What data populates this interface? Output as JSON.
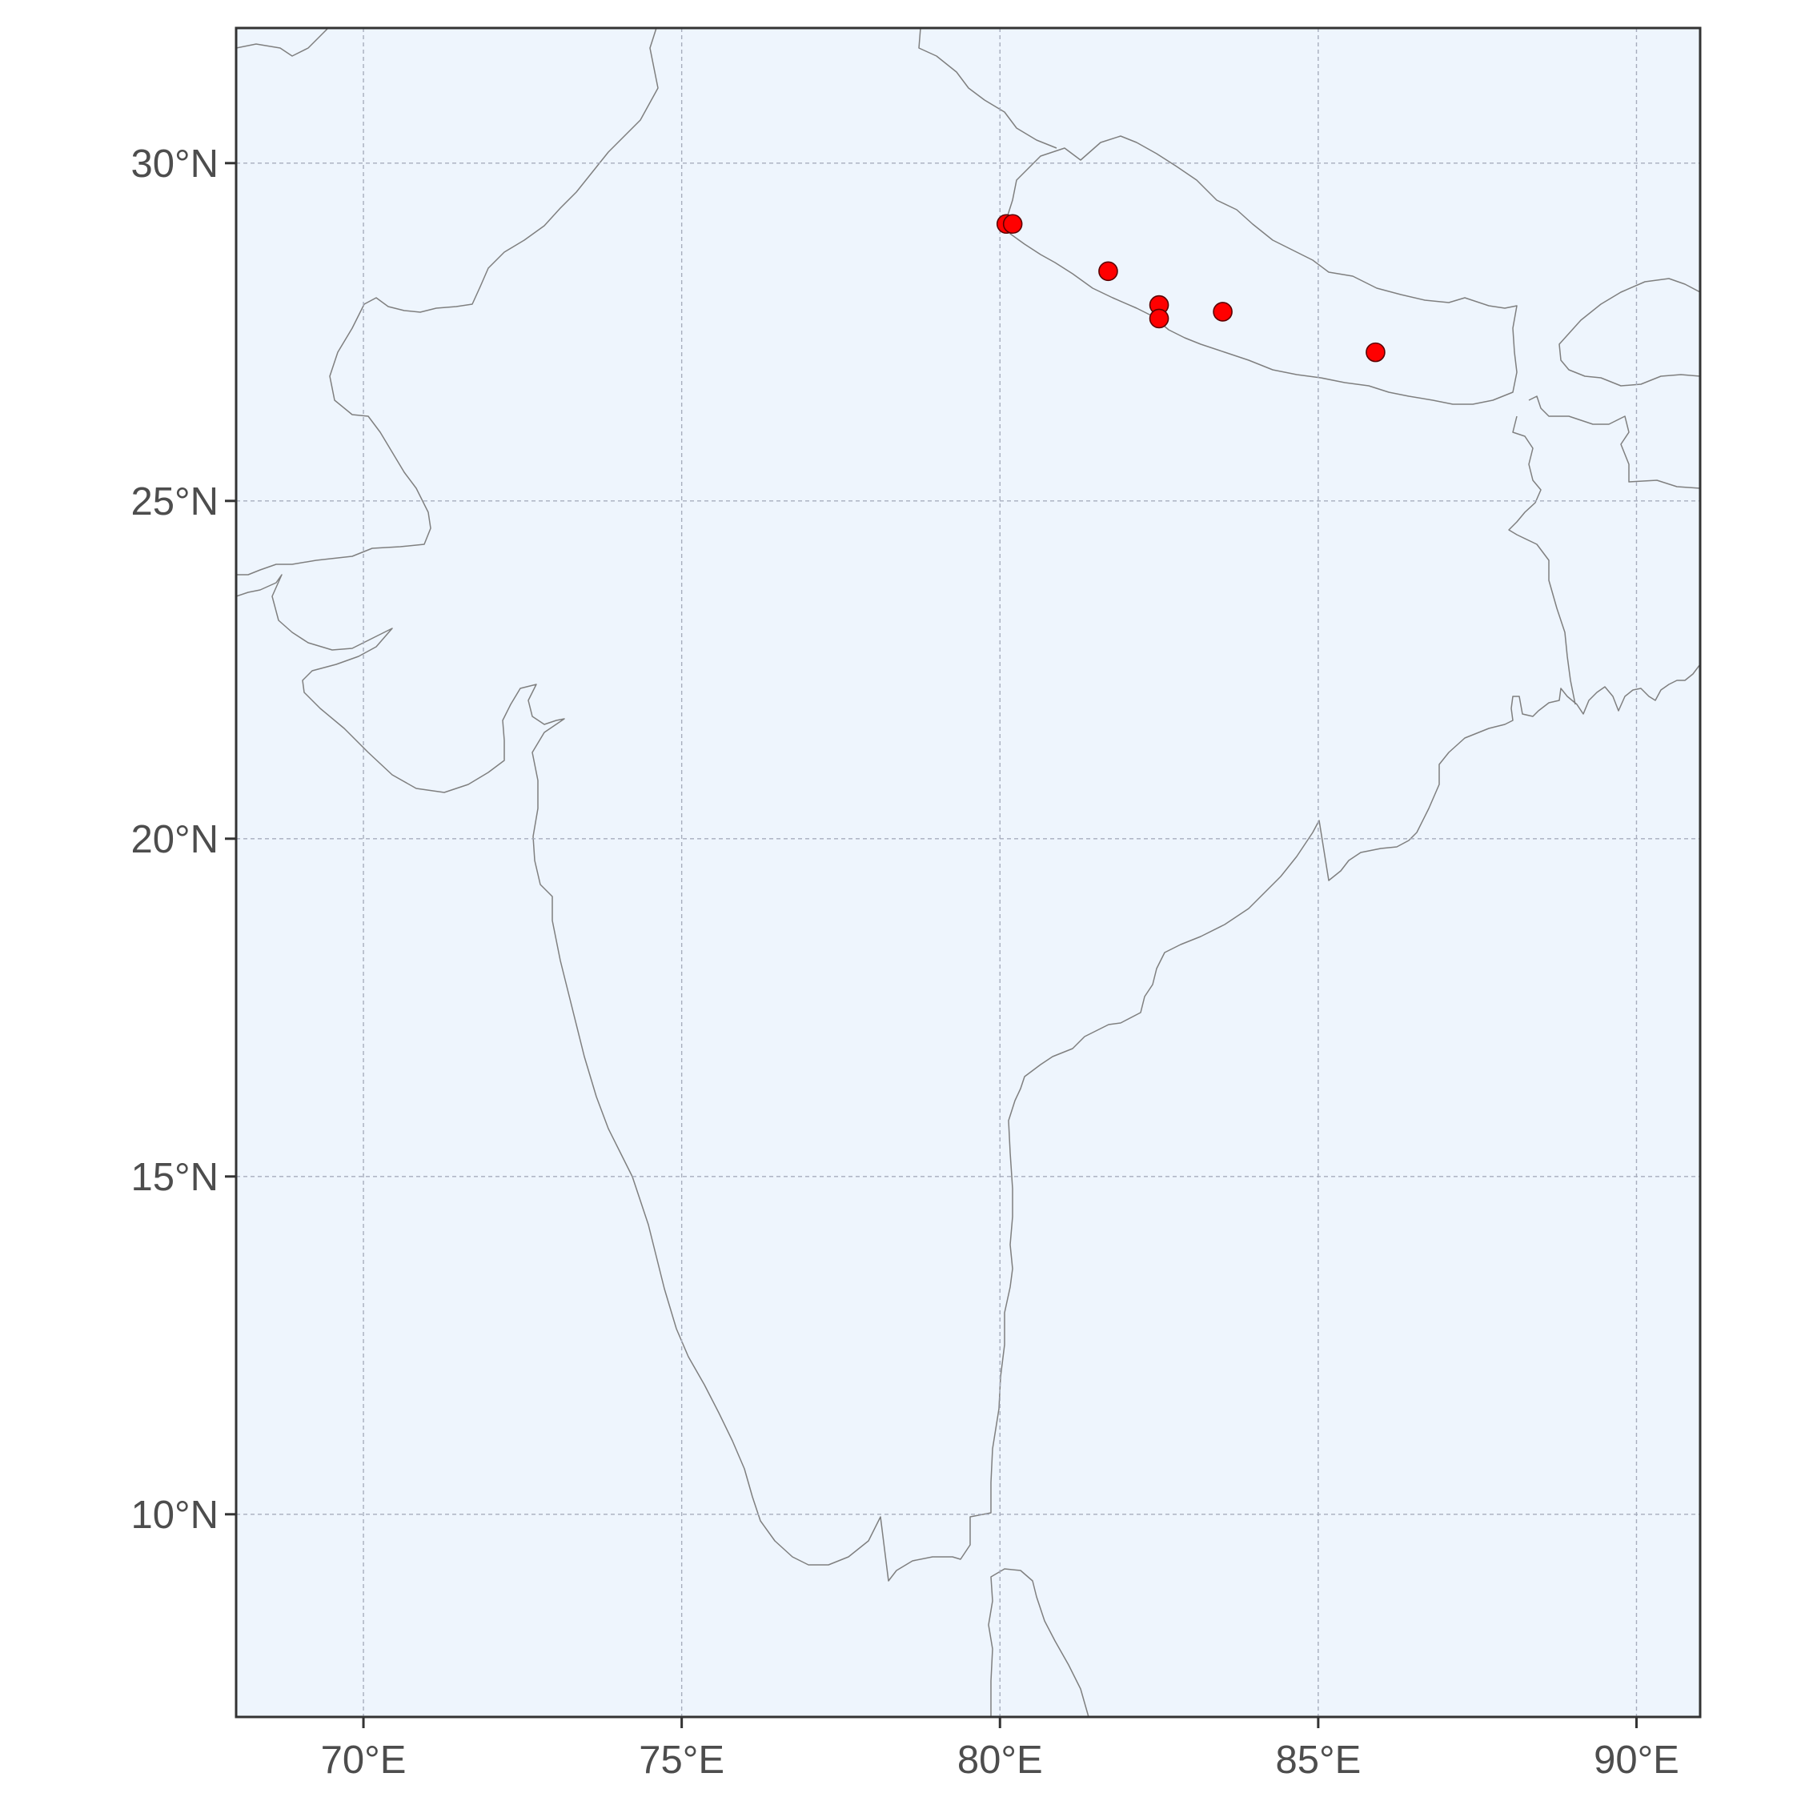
{
  "map": {
    "colors": {
      "land": "#fefff0",
      "sea": "#eef5fd",
      "border": "#7f7f7f",
      "grid": "#a7adbd",
      "point_fill": "#ff0000",
      "point_stroke": "#5a0000",
      "frame": "#333333"
    },
    "extent": {
      "lon": [
        68.0,
        91.0
      ],
      "lat": [
        7.0,
        32.0
      ]
    },
    "x_ticks": [
      {
        "value": 70,
        "label": "70°E"
      },
      {
        "value": 75,
        "label": "75°E"
      },
      {
        "value": 80,
        "label": "80°E"
      },
      {
        "value": 85,
        "label": "85°E"
      },
      {
        "value": 90,
        "label": "90°E"
      }
    ],
    "y_ticks": [
      {
        "value": 10,
        "label": "10°N"
      },
      {
        "value": 15,
        "label": "15°N"
      },
      {
        "value": 20,
        "label": "20°N"
      },
      {
        "value": 25,
        "label": "25°N"
      },
      {
        "value": 30,
        "label": "30°N"
      }
    ],
    "points": [
      {
        "lon": 80.1,
        "lat": 29.1
      },
      {
        "lon": 80.2,
        "lat": 29.1
      },
      {
        "lon": 81.7,
        "lat": 28.4
      },
      {
        "lon": 82.5,
        "lat": 27.9
      },
      {
        "lon": 82.5,
        "lat": 27.7
      },
      {
        "lon": 83.5,
        "lat": 27.8
      },
      {
        "lon": 85.9,
        "lat": 27.2
      }
    ]
  }
}
